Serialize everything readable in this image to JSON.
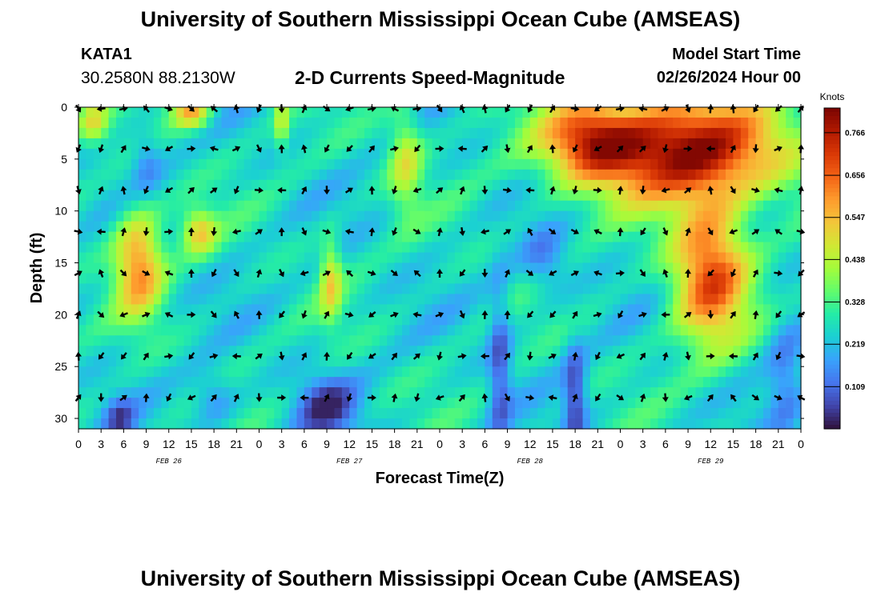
{
  "header": {
    "title": "University of Southern Mississippi Ocean Cube (AMSEAS)",
    "station": "KATA1",
    "coordinates": "30.2580N  88.2130W",
    "subtitle": "2-D Currents Speed-Magnitude",
    "model_start_label": "Model Start Time",
    "model_start_value": "02/26/2024 Hour 00"
  },
  "footer": {
    "title": "University of Southern Mississippi Ocean Cube (AMSEAS)"
  },
  "chart_data": {
    "type": "heatmap",
    "title": "2-D Currents Speed-Magnitude",
    "xlabel": "Forecast Time(Z)",
    "ylabel": "Depth (ft)",
    "x_range_hours": [
      0,
      96
    ],
    "x_tick_labels": [
      "0",
      "3",
      "6",
      "9",
      "12",
      "15",
      "18",
      "21",
      "0",
      "3",
      "6",
      "9",
      "12",
      "15",
      "18",
      "21",
      "0",
      "3",
      "6",
      "9",
      "12",
      "15",
      "18",
      "21",
      "0",
      "3",
      "6",
      "9",
      "12",
      "15",
      "18",
      "21",
      "0"
    ],
    "day_labels": [
      {
        "text": "FEB 26",
        "hour": 12
      },
      {
        "text": "FEB 27",
        "hour": 36
      },
      {
        "text": "FEB 28",
        "hour": 60
      },
      {
        "text": "FEB 29",
        "hour": 84
      }
    ],
    "y_range_ft": [
      0,
      31
    ],
    "y_ticks": [
      0,
      5,
      10,
      15,
      20,
      25,
      30
    ],
    "colorbar": {
      "unit": "Knots",
      "range": [
        0.0,
        0.83
      ],
      "tick_values": [
        0.109,
        0.219,
        0.328,
        0.438,
        0.547,
        0.656,
        0.766
      ],
      "tick_labels": [
        "0.109",
        "0.219",
        "0.328",
        "0.438",
        "0.547",
        "0.656",
        "0.766"
      ],
      "colormap": [
        "#30123b",
        "#4145ab",
        "#4675ed",
        "#39a2fc",
        "#1bcfd4",
        "#24eca6",
        "#61fc6c",
        "#a4fc3b",
        "#d1e834",
        "#f3c63a",
        "#fe9b2d",
        "#f36315",
        "#d93806",
        "#b11901",
        "#7a0402"
      ]
    },
    "arrow_times_hours": [
      0,
      3,
      6,
      9,
      12,
      15,
      18,
      21,
      24,
      27,
      30,
      33,
      36,
      39,
      42,
      45,
      48,
      51,
      54,
      57,
      60,
      63,
      66,
      69,
      72,
      75,
      78,
      81,
      84,
      87,
      90,
      93,
      96
    ],
    "arrow_depths_ft": [
      0,
      4,
      8,
      12,
      16,
      20,
      24,
      28
    ],
    "speed_features": [
      {
        "name": "surface high-speed region",
        "hours": [
          60,
          96
        ],
        "depth_ft": [
          0,
          11
        ],
        "peak_knots": 0.8
      },
      {
        "name": "mid-depth high at 9Z Feb 26",
        "hours": [
          4,
          12
        ],
        "depth_ft": [
          10,
          20
        ],
        "peak_knots": 0.55
      },
      {
        "name": "mid-depth high 15Z-18Z Feb 26",
        "hours": [
          14,
          19
        ],
        "depth_ft": [
          10,
          15
        ],
        "peak_knots": 0.5
      },
      {
        "name": "mid-depth high 9Z Feb 27",
        "hours": [
          32,
          35
        ],
        "depth_ft": [
          13,
          20
        ],
        "peak_knots": 0.45
      },
      {
        "name": "deep high 9Z-21Z Feb 29",
        "hours": [
          78,
          93
        ],
        "depth_ft": [
          10,
          23
        ],
        "peak_knots": 0.65
      },
      {
        "name": "near-surface 18Z-21Z Feb 27",
        "hours": [
          41,
          46
        ],
        "depth_ft": [
          0,
          11
        ],
        "peak_knots": 0.45
      }
    ]
  }
}
